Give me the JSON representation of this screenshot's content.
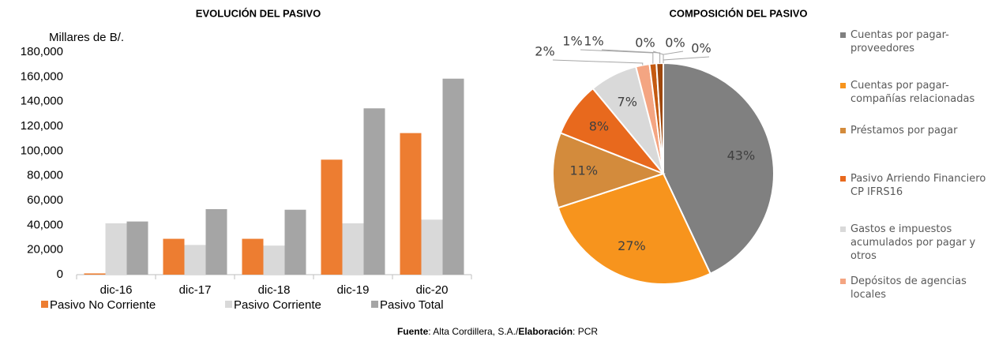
{
  "chart_data": [
    {
      "type": "bar",
      "title": "EVOLUCIÓN DEL PASIVO",
      "y_label": "Millares de B/.",
      "categories": [
        "dic-16",
        "dic-17",
        "dic-18",
        "dic-19",
        "dic-20"
      ],
      "series": [
        {
          "name": "Pasivo No Corriente",
          "color": "#ed7d31",
          "values": [
            1000,
            29000,
            29000,
            93000,
            114500
          ]
        },
        {
          "name": "Pasivo Corriente",
          "color": "#d9d9d9",
          "values": [
            41500,
            24000,
            23500,
            41500,
            44500
          ]
        },
        {
          "name": "Pasivo Total",
          "color": "#a5a5a5",
          "values": [
            43000,
            53000,
            52500,
            134500,
            158500
          ]
        }
      ],
      "ylim": [
        0,
        180000
      ],
      "yticks": [
        0,
        {
          "value": 20000,
          "label": "20,000"
        },
        {
          "value": 40000,
          "label": "40,000"
        },
        {
          "value": 60000,
          "label": "60,000"
        },
        {
          "value": 80000,
          "label": "80,000"
        },
        {
          "value": 100000,
          "label": "100,000"
        },
        {
          "value": 120000,
          "label": "120,000"
        },
        {
          "value": 140000,
          "label": "140,000"
        },
        {
          "value": 160000,
          "label": "160,000"
        },
        {
          "value": 180000,
          "label": "180,000"
        }
      ],
      "grid": false,
      "legend": "bottom"
    },
    {
      "type": "pie",
      "title": "COMPOSICIÓN DEL PASIVO",
      "categories": [
        "Cuentas por pagar-proveedores",
        "Cuentas por pagar-compañías relacionadas",
        "Préstamos por pagar",
        "Pasivo Arriendo Financiero CP IFRS16",
        "Gastos e impuestos acumulados por pagar y otros",
        "Depósitos de agencias locales",
        null,
        null,
        null,
        null,
        null
      ],
      "values": [
        43,
        27,
        11,
        8,
        7,
        2,
        1,
        1,
        0,
        0,
        0
      ],
      "value_labels": [
        "43%",
        "27%",
        "11%",
        "8%",
        "7%",
        "2%",
        "1%",
        "1%",
        "0%",
        "0%",
        "0%"
      ],
      "colors": [
        "#808080",
        "#f7941d",
        "#d38b3c",
        "#e8691d",
        "#d9d9d9",
        "#f4a582",
        "#c55a11",
        "#9e480e",
        "#7f6000",
        "#636363",
        "#bf9000"
      ],
      "legend": "right"
    }
  ],
  "source": [
    "Fuente",
    ": Alta Cordillera, S.A./",
    "Elaboración",
    ": PCR"
  ]
}
